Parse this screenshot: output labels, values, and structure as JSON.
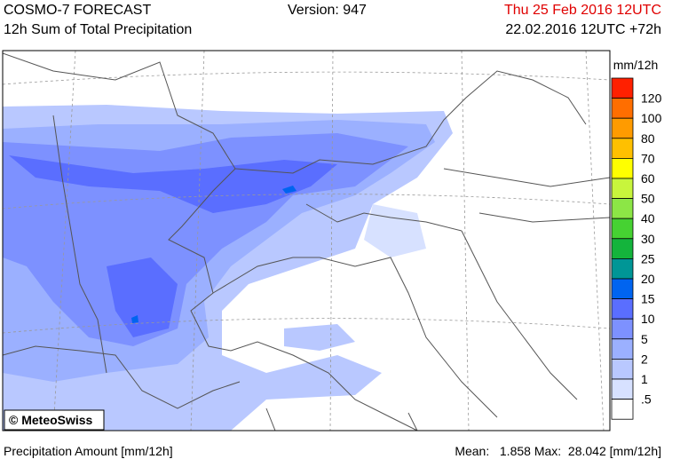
{
  "header": {
    "title": "COSMO-7 FORECAST",
    "subtitle": "12h Sum of Total Precipitation",
    "version": "Version: 947",
    "valid_time": "Thu 25 Feb 2016 12UTC",
    "run": "22.02.2016 12UTC +72h"
  },
  "legend": {
    "unit": "mm/12h",
    "colors": [
      "#ff2000",
      "#ff6e00",
      "#ff9b00",
      "#ffc000",
      "#ffff00",
      "#c8f53c",
      "#8ce646",
      "#46d232",
      "#14b43c",
      "#009696",
      "#0064f0",
      "#5a6eff",
      "#7d91ff",
      "#9bb0ff",
      "#b9c8ff",
      "#d7e1ff",
      "#ffffff"
    ],
    "labels": [
      "120",
      "100",
      "80",
      "70",
      "60",
      "50",
      "40",
      "30",
      "25",
      "20",
      "15",
      "10",
      "5",
      "2",
      "1",
      ".5"
    ]
  },
  "credit": "© MeteoSwiss",
  "footer": {
    "left": "Precipitation Amount [mm/12h]",
    "stats": "Mean:   1.858 Max:  28.042 [mm/12h]"
  }
}
